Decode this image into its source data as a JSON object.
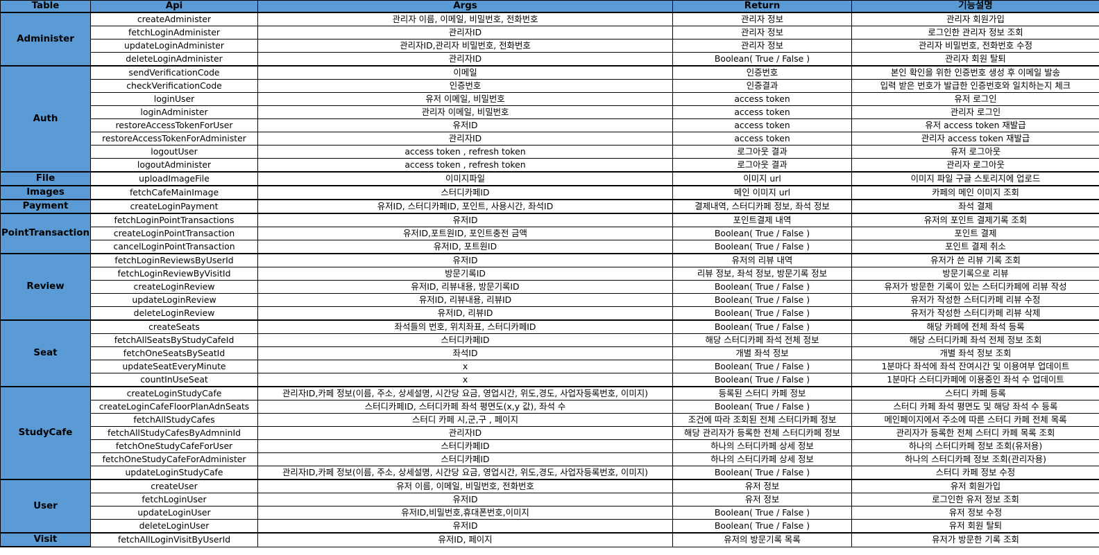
{
  "headers": [
    "Table",
    "Api",
    "Args",
    "Return",
    "기능설명"
  ],
  "groups": [
    {
      "name": "Administer",
      "rows": [
        [
          "createAdminister",
          "관리자 이름, 이메일, 비밀번호, 전화번호",
          "관리자 정보",
          "관리자 회원가입"
        ],
        [
          "fetchLoginAdminister",
          "관리자ID",
          "관리자 정보",
          "로그인한 관리자 정보 조회"
        ],
        [
          "updateLoginAdminister",
          "관리자ID,관리자 비밀번호, 전화번호",
          "관리자 정보",
          "관리자 비밀번호, 전화번호 수정"
        ],
        [
          "deleteLoginAdminister",
          "관리자ID",
          "Boolean( True / False )",
          "관리자 회원 탈퇴"
        ]
      ]
    },
    {
      "name": "Auth",
      "rows": [
        [
          "sendVerificationCode",
          "이메일",
          "인증번호",
          "본인 확인을 위한 인증번호 생성 후 이메일 발송"
        ],
        [
          "checkVerificationCode",
          "인증번호",
          "인증결과",
          "입력 받은 번호가 발급한 인증번호와 일치하는지 체크"
        ],
        [
          "loginUser",
          "유저 이메일, 비밀번호",
          "access token",
          "유저 로그인"
        ],
        [
          "loginAdminister",
          "관리자 이메일, 비밀번호",
          "access token",
          "관리자 로그인"
        ],
        [
          "restoreAccessTokenForUser",
          "유저ID",
          "access token",
          "유저   access token 재발급"
        ],
        [
          "restoreAccessTokenForAdminister",
          "관리자ID",
          "access token",
          "관리자 access token 재발급"
        ],
        [
          "logoutUser",
          "access token , refresh token",
          "로그아웃 결과",
          "유저 로그아웃"
        ],
        [
          "logoutAdminister",
          "access token , refresh token",
          "로그아웃 결과",
          "관리자 로그아웃"
        ]
      ]
    },
    {
      "name": "File",
      "rows": [
        [
          "uploadImageFile",
          "이미지파일",
          "이미지 url",
          "이미지 파일 구글 스토리지에 업로드"
        ]
      ]
    },
    {
      "name": "Images",
      "rows": [
        [
          "fetchCafeMainImage",
          "스터디카페ID",
          "메인 이미지 url",
          "카페의 메인 이미지 조회"
        ]
      ]
    },
    {
      "name": "Payment",
      "rows": [
        [
          "createLoginPayment",
          "유저ID, 스터디카페ID, 포인트, 사용시간, 좌석ID",
          "결제내역, 스터디카페 정보, 좌석 정보",
          "좌석 결제"
        ]
      ]
    },
    {
      "name": "PointTransaction",
      "rows": [
        [
          "fetchLoginPointTransactions",
          "유저ID",
          "포인트결제 내역",
          "유저의 포인트 결제기록 조회"
        ],
        [
          "createLoginPointTransaction",
          "유저ID,포트원ID, 포인트충전 금액",
          "Boolean( True / False )",
          "포인트 결제"
        ],
        [
          "cancelLoginPointTransaction",
          "유저ID, 포트원ID",
          "Boolean( True / False )",
          "포인트 결제 취소"
        ]
      ]
    },
    {
      "name": "Review",
      "rows": [
        [
          "fetchLoginReviewsByUserId",
          "유저ID",
          "유저의 리뷰 내역",
          "유저가 쓴 리뷰 기록 조회"
        ],
        [
          "fetchLoginReviewByVisitId",
          "방문기록ID",
          "리뷰 정보, 좌석 정보, 방문기록 정보",
          "방문기록으로 리뷰"
        ],
        [
          "createLoginReview",
          "유저ID, 리뷰내용, 방문기록ID",
          "Boolean( True / False )",
          "유저가 방문한 기록이 있는 스터디카페에 리뷰 작성"
        ],
        [
          "updateLoginReview",
          "유저ID, 리뷰내용, 리뷰ID",
          "Boolean( True / False )",
          "유저가 작성한 스터디카페 리뷰 수정"
        ],
        [
          "deleteLoginReview",
          "유저ID, 리뷰ID",
          "Boolean( True / False )",
          "유저가 작성한 스터디카페 리뷰 삭제"
        ]
      ]
    },
    {
      "name": "Seat",
      "rows": [
        [
          "createSeats",
          "좌석들의 번호, 위치좌표, 스터디카페ID",
          "Boolean( True / False )",
          "해당 카페에 전체 좌석 등록"
        ],
        [
          "fetchAllSeatsByStudyCafeId",
          "스터디카페ID",
          "해당 스터디카페 좌석 전체 정보",
          "해당 스터디카페 좌석 전체 정보 조회"
        ],
        [
          "fetchOneSeatsBySeatId",
          "좌석ID",
          "개별 좌석 정보",
          "개별 좌석 정보 조회"
        ],
        [
          "updateSeatEveryMinute",
          "x",
          "Boolean( True / False )",
          "1분마다 좌석에 좌석 잔여시간 및 이용여부 업데이트"
        ],
        [
          "countInUseSeat",
          "x",
          "Boolean( True / False )",
          "1분마다 스터디카페에 이용중인 좌석 수 업데이트"
        ]
      ]
    },
    {
      "name": "StudyCafe",
      "rows": [
        [
          "createLoginStudyCafe",
          "관리자ID,카페 정보(이름, 주소, 상세설명, 시간당 요금, 영업시간, 위도,경도, 사업자등록번호, 이미지)",
          "등록된 스터디 카페 정보",
          "스터디 카페 등록"
        ],
        [
          "createLoginCafeFloorPlanAdnSeats",
          "스터디카페ID, 스터디카페 좌석 평면도(x,y 값), 좌석 수",
          "Boolean( True / False )",
          "스터디 카페 좌석 평면도 및 해당 좌석 수 등록"
        ],
        [
          "fetchAllStudyCafes",
          "스터디 카페 시,군,구 , 페이지",
          "조건에 따라 조회된 전체 스터디카페 정보",
          "메인페이지에서 주소에 따른 스터디 카페 전체 목록"
        ],
        [
          "fetchAllStudyCafesByAdmninId",
          "관리자ID",
          "해당 관리자가 등록한 전체 스터디카페 정보",
          "관리자가 등록한 전체 스터디 카페 목록 조회"
        ],
        [
          "fetchOneStudyCafeForUser",
          "스터디카페ID",
          "하나의 스터디카페 상세 정보",
          "하나의 스터디카페 정보 조회(유저용)"
        ],
        [
          "fetchOneStudyCafeForAdminister",
          "스터디카페ID",
          "하나의 스터디카페 상세 정보",
          "하나의 스터디카페 정보 조회(관리자용)"
        ],
        [
          "updateLoginStudyCafe",
          "관리자ID,카페 정보(이름, 주소, 상세설명, 시간당 요금, 영업시간, 위도,경도, 사업자등록번호, 이미지)",
          "Boolean( True / False )",
          "스터디 카페 정보 수정"
        ]
      ]
    },
    {
      "name": "User",
      "rows": [
        [
          "createUser",
          "유저 이름, 이메일, 비밀번호, 전화번호",
          "유저 정보",
          "유저 회원가입"
        ],
        [
          "fetchLoginUser",
          "유저ID",
          "유저 정보",
          "로그인한 유저 정보 조회"
        ],
        [
          "updateLoginUser",
          "유저ID,비밀번호,휴대폰번호,이미지",
          "Boolean( True / False )",
          "유저 정보 수정"
        ],
        [
          "deleteLoginUser",
          "유저ID",
          "Boolean( True / False )",
          "유저 회원 탈퇴"
        ]
      ]
    },
    {
      "name": "Visit",
      "rows": [
        [
          "fetchAllLoginVisitByUserId",
          "유저ID, 페이지",
          "유저의 방문기록 목록",
          "유저가 방문한 기록 조회"
        ]
      ]
    }
  ]
}
